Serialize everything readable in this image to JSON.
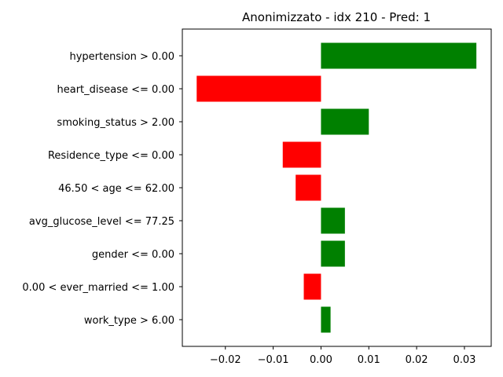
{
  "chart_data": {
    "type": "bar",
    "orientation": "horizontal",
    "title": "Anonimizzato - idx 210 - Pred: 1",
    "xlabel": "",
    "ylabel": "",
    "categories": [
      "hypertension > 0.00",
      "heart_disease <= 0.00",
      "smoking_status > 2.00",
      "Residence_type <= 0.00",
      "46.50 < age <= 62.00",
      "avg_glucose_level <= 77.25",
      "gender <= 0.00",
      "0.00 < ever_married <= 1.00",
      "work_type > 6.00"
    ],
    "values": [
      0.0325,
      -0.026,
      0.01,
      -0.008,
      -0.0053,
      0.005,
      0.005,
      -0.0036,
      0.002
    ],
    "xlim": [
      -0.029,
      0.0356
    ],
    "xticks": [
      -0.02,
      -0.01,
      0.0,
      0.01,
      0.02,
      0.03
    ],
    "xtick_labels": [
      "−0.02",
      "−0.01",
      "0.00",
      "0.01",
      "0.02",
      "0.03"
    ],
    "grid": false,
    "colors": {
      "positive": "#008000",
      "negative": "#ff0000"
    }
  }
}
